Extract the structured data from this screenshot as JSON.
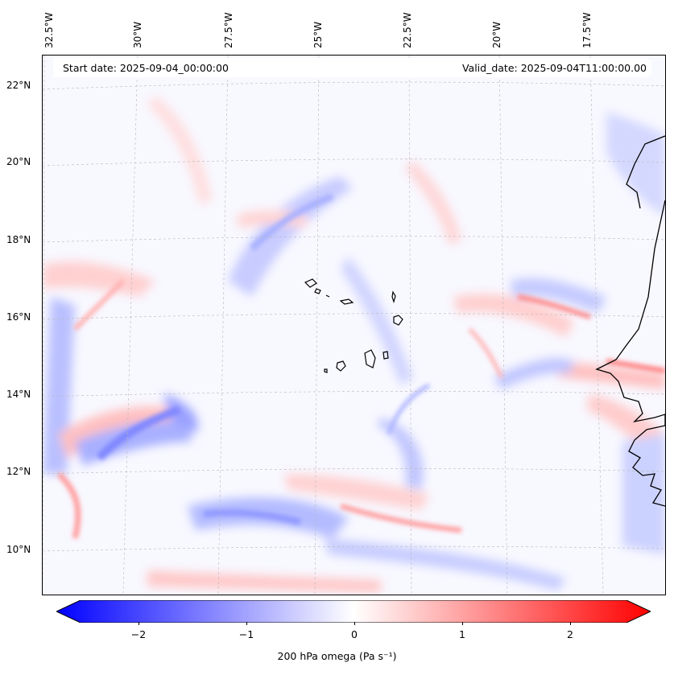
{
  "map": {
    "start_date": "Start date: 2025-09-04_00:00:00",
    "valid_date": "Valid_date: 2025-09-04T11:00:00.00",
    "lon_labels": [
      "32.5°W",
      "30°W",
      "27.5°W",
      "25°W",
      "22.5°W",
      "20°W",
      "17.5°W"
    ],
    "lat_labels": [
      "22°N",
      "20°N",
      "18°N",
      "16°N",
      "14°N",
      "12°N",
      "10°N"
    ],
    "variable": "200 hPa omega",
    "units": "(Pa s⁻¹)",
    "colormap": {
      "negative": "#0000ff",
      "zero": "#ffffff",
      "positive": "#ff0000"
    },
    "coastline_color": "#000000",
    "gridlines": true
  },
  "colorbar": {
    "ticks": [
      "−2",
      "−1",
      "0",
      "1",
      "2"
    ],
    "range": [
      -2.7,
      2.7
    ],
    "label": "200 hPa omega (Pa s⁻¹)"
  }
}
